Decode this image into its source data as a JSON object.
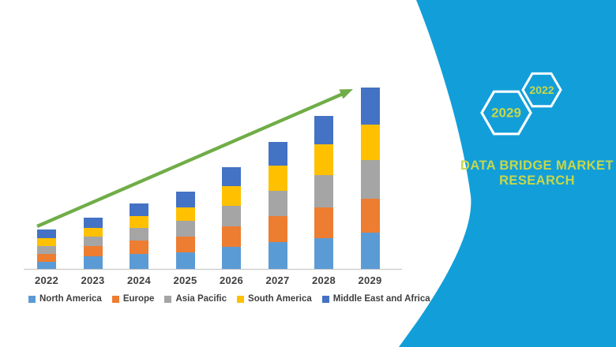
{
  "chart_data": {
    "type": "bar",
    "stacked": true,
    "categories": [
      "2022",
      "2023",
      "2024",
      "2025",
      "2026",
      "2027",
      "2028",
      "2029"
    ],
    "series": [
      {
        "name": "North America",
        "color": "#5B9BD5",
        "values": [
          9,
          16,
          19,
          21,
          28,
          34,
          39,
          46
        ]
      },
      {
        "name": "Europe",
        "color": "#ED7D31",
        "values": [
          10,
          13,
          17,
          20,
          26,
          33,
          39,
          43
        ]
      },
      {
        "name": "Asia Pacific",
        "color": "#A5A5A5",
        "values": [
          10,
          12,
          16,
          20,
          26,
          32,
          41,
          49
        ]
      },
      {
        "name": "South America",
        "color": "#FFC000",
        "values": [
          10,
          11,
          15,
          17,
          25,
          32,
          39,
          45
        ]
      },
      {
        "name": "Middle East and Africa",
        "color": "#4472C4",
        "values": [
          11,
          13,
          16,
          20,
          24,
          30,
          36,
          47
        ]
      }
    ],
    "totals": [
      50,
      65,
      83,
      98,
      129,
      161,
      194,
      230
    ],
    "ylim": [
      0,
      230
    ],
    "value_scale": "relative units (no y-axis shown)",
    "grid": false,
    "legend_position": "bottom",
    "axis_line_color": "#c9c9c9",
    "trend_arrow": {
      "color": "#70AD47",
      "from_category": "2022",
      "to_category": "2029"
    }
  },
  "right_panel": {
    "background_color": "#129FD9",
    "accent_text_color": "#C6D74A",
    "title_line1": "DATA BRIDGE MARKET",
    "title_line2": "RESEARCH",
    "hexagons": [
      {
        "label": "2029"
      },
      {
        "label": "2022"
      }
    ]
  }
}
